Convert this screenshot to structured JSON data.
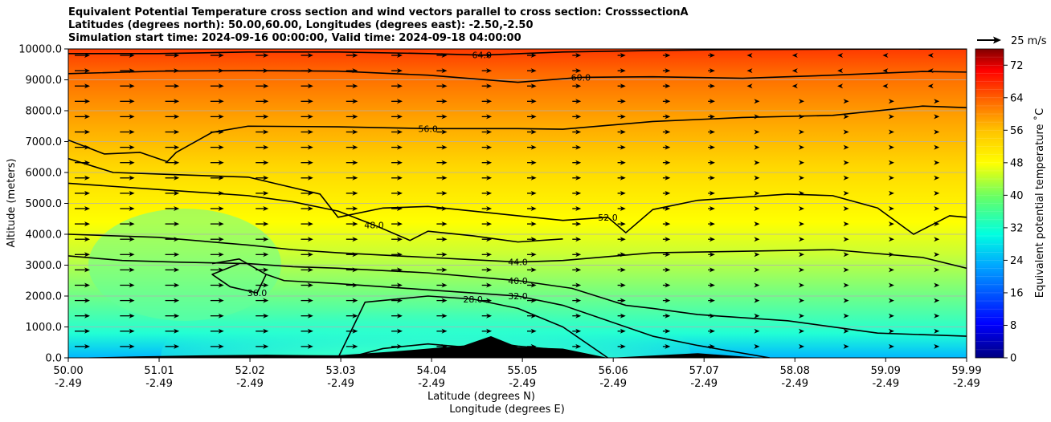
{
  "title": {
    "line1": "Equivalent Potential Temperature cross section and wind vectors parallel to cross section: CrosssectionA",
    "line2": "Latitudes (degrees north): 50.00,60.00, Longitudes (degrees east): -2.50,-2.50",
    "line3": "Simulation start time: 2024-09-16 00:00:00, Valid time: 2024-09-18 04:00:00"
  },
  "chart_data": {
    "type": "contour",
    "ylabel": "Altitude (meters)",
    "xlabel_lat": "Latitude (degrees N)",
    "xlabel_lon": "Longitude (degrees E)",
    "ylim": [
      0,
      10000
    ],
    "y_ticks": [
      "0.0",
      "1000.0",
      "2000.0",
      "3000.0",
      "4000.0",
      "5000.0",
      "6000.0",
      "7000.0",
      "8000.0",
      "9000.0",
      "10000.0"
    ],
    "y_tick_values": [
      0,
      1000,
      2000,
      3000,
      4000,
      5000,
      6000,
      7000,
      8000,
      9000,
      10000
    ],
    "xlim": [
      50.0,
      59.99
    ],
    "x_ticks_lat": [
      "50.00",
      "51.01",
      "52.02",
      "53.03",
      "54.04",
      "55.05",
      "56.06",
      "57.07",
      "58.08",
      "59.09",
      "59.99"
    ],
    "x_tick_values": [
      50.0,
      51.01,
      52.02,
      53.03,
      54.04,
      55.05,
      56.06,
      57.07,
      58.08,
      59.09,
      59.99
    ],
    "x_ticks_lon": [
      "-2.49",
      "-2.49",
      "-2.49",
      "-2.49",
      "-2.49",
      "-2.49",
      "-2.49",
      "-2.49",
      "-2.49",
      "-2.49",
      "-2.49"
    ],
    "colorbar": {
      "label": "Equivalent potential temperature ˚C",
      "min": 0,
      "max": 76,
      "ticks": [
        "0",
        "8",
        "16",
        "24",
        "32",
        "40",
        "48",
        "56",
        "64",
        "72"
      ],
      "tick_values": [
        0,
        8,
        16,
        24,
        32,
        40,
        48,
        56,
        64,
        72
      ]
    },
    "quiver_key": "25 m/s",
    "contours": [
      {
        "level": "64.0",
        "lat": [
          50.0,
          51.0,
          52.0,
          53.0,
          54.0,
          54.6,
          55.5,
          56.5,
          57.5,
          58.5,
          59.99
        ],
        "alt": [
          9850,
          9850,
          9900,
          9900,
          9850,
          9800,
          9900,
          9950,
          9980,
          9990,
          10000
        ]
      },
      {
        "level": "60.0",
        "lat": [
          50.0,
          51.0,
          52.0,
          53.0,
          54.0,
          55.0,
          55.7,
          56.5,
          57.5,
          58.5,
          59.5,
          59.99
        ],
        "alt": [
          9200,
          9280,
          9300,
          9280,
          9150,
          8920,
          9080,
          9100,
          9050,
          9150,
          9270,
          9250
        ]
      },
      {
        "level": "56.0",
        "lat": [
          50.0,
          50.4,
          50.8,
          51.1,
          51.2,
          51.6,
          52.0,
          53.0,
          54.0,
          55.0,
          55.5,
          56.5,
          57.5,
          58.5,
          59.5,
          59.99
        ],
        "alt": [
          7050,
          6600,
          6650,
          6350,
          6650,
          7300,
          7500,
          7480,
          7420,
          7420,
          7400,
          7650,
          7780,
          7850,
          8150,
          8100
        ]
      },
      {
        "level": "52.0",
        "lat": [
          50.0,
          50.5,
          51.0,
          52.0,
          52.8,
          53.0,
          53.5,
          54.0,
          55.0,
          55.5,
          56.0,
          56.2,
          56.5,
          57.0,
          57.5,
          58.0,
          58.5,
          59.0,
          59.4,
          59.8,
          59.99
        ],
        "alt": [
          6450,
          6000,
          5950,
          5850,
          5300,
          4550,
          4850,
          4900,
          4600,
          4450,
          4550,
          4050,
          4800,
          5100,
          5200,
          5300,
          5250,
          4850,
          4000,
          4600,
          4550
        ]
      },
      {
        "level": "48.0",
        "lat": [
          50.0,
          51.0,
          52.0,
          52.5,
          53.0,
          53.4,
          53.8,
          54.0,
          54.5,
          55.0,
          55.5
        ],
        "alt": [
          5650,
          5450,
          5250,
          5050,
          4750,
          4300,
          3800,
          4100,
          3950,
          3750,
          3850
        ]
      },
      {
        "level": "44.0",
        "lat": [
          50.0,
          51.0,
          52.0,
          52.5,
          53.0,
          54.0,
          55.0,
          55.5,
          56.5,
          57.5,
          58.5,
          59.5,
          59.99
        ],
        "alt": [
          4000,
          3900,
          3650,
          3500,
          3400,
          3250,
          3100,
          3150,
          3400,
          3450,
          3500,
          3250,
          2900
        ]
      },
      {
        "level": "40.0",
        "lat": [
          50.0,
          50.6,
          51.2,
          52.0,
          52.5,
          53.0,
          54.0,
          55.0,
          55.6,
          56.2,
          56.5,
          57.0,
          58.0,
          59.0,
          59.99
        ],
        "alt": [
          3300,
          3150,
          3100,
          3050,
          2950,
          2900,
          2750,
          2500,
          2250,
          1700,
          1600,
          1400,
          1200,
          800,
          700
        ]
      },
      {
        "level": "36.0",
        "lat": [
          51.6,
          51.9,
          52.2,
          52.1,
          51.8,
          51.6,
          51.9
        ],
        "alt": [
          3050,
          3200,
          2700,
          2100,
          2300,
          2700,
          3050
        ]
      },
      {
        "level": "32.0",
        "lat": [
          52.2,
          52.4,
          53.0,
          53.5,
          54.0,
          55.0,
          55.5,
          56.0,
          56.5,
          57.0,
          57.8
        ],
        "alt": [
          2700,
          2500,
          2400,
          2300,
          2200,
          2000,
          1700,
          1200,
          700,
          400,
          0
        ]
      },
      {
        "level": "28.0",
        "lat": [
          53.0,
          53.3,
          54.0,
          54.5,
          55.0,
          55.5,
          56.0
        ],
        "alt": [
          0,
          1800,
          2000,
          1900,
          1600,
          1000,
          0
        ]
      },
      {
        "level": "24.0",
        "lat": [
          53.1,
          53.5,
          54.0,
          54.4,
          54.7,
          55.0,
          55.5,
          55.9
        ],
        "alt": [
          0,
          300,
          450,
          350,
          500,
          380,
          250,
          0
        ]
      }
    ],
    "terrain": {
      "lat": [
        50.0,
        50.8,
        51.5,
        52.2,
        53.0,
        53.6,
        54.0,
        54.4,
        54.7,
        55.0,
        55.5,
        56.0,
        57.0,
        57.7,
        58.5,
        59.99
      ],
      "alt": [
        0,
        50,
        80,
        100,
        80,
        200,
        300,
        400,
        700,
        350,
        300,
        0,
        150,
        0,
        0,
        0
      ]
    }
  }
}
